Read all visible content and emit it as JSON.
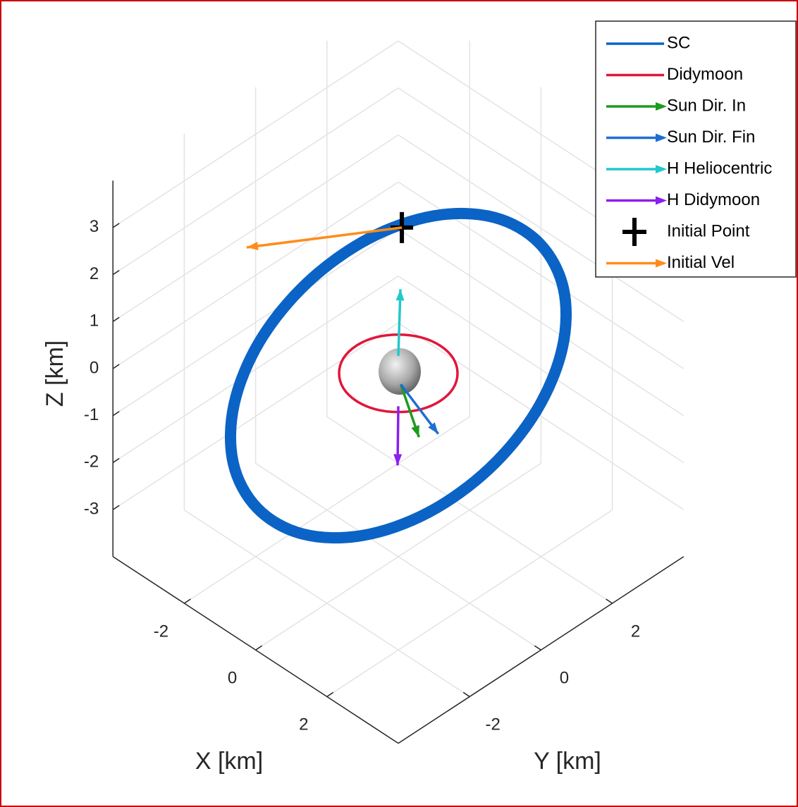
{
  "chart_data": {
    "type": "line3d",
    "xlabel": "X [km]",
    "ylabel": "Y [km]",
    "zlabel": "Z [km]",
    "xlim": [
      -4,
      4
    ],
    "ylim": [
      -4,
      4
    ],
    "zlim": [
      -4,
      4
    ],
    "xticks": [
      -2,
      0,
      2
    ],
    "yticks": [
      -2,
      0,
      2
    ],
    "zticks": [
      -3,
      -2,
      -1,
      0,
      1,
      2,
      3
    ],
    "grid": true,
    "legend": "upper right",
    "series": [
      {
        "name": "SC",
        "color": "#0b63c5",
        "kind": "line",
        "x": [
          1.7,
          1.76,
          1.55,
          1.11,
          0.5,
          -0.19,
          -0.85,
          -1.38,
          -1.7,
          -1.76,
          -1.55,
          -1.11,
          -0.5,
          0.19,
          0.85,
          1.38
        ],
        "y": [
          2.9,
          2.87,
          2.4,
          1.57,
          0.5,
          -0.65,
          -1.7,
          -2.49,
          -2.9,
          -2.87,
          -2.4,
          -1.57,
          -0.5,
          0.65,
          1.7,
          2.49
        ],
        "z": [
          -0.15,
          1.15,
          2.25,
          2.99,
          3.25,
          2.99,
          2.25,
          1.15,
          -0.15,
          -1.45,
          -2.55,
          -3.29,
          -3.55,
          -3.29,
          -2.55,
          -1.45
        ]
      },
      {
        "name": "Didymoon",
        "color": "#e0173b",
        "kind": "line",
        "x": [
          1.18,
          1.09,
          0.83,
          0.45,
          0,
          -0.45,
          -0.83,
          -1.09,
          -1.18,
          -1.09,
          -0.83,
          -0.45,
          0,
          0.45,
          0.83,
          1.09
        ],
        "y": [
          0,
          0.45,
          0.83,
          1.09,
          1.18,
          1.09,
          0.83,
          0.45,
          0,
          -0.45,
          -0.83,
          -1.09,
          -1.18,
          -1.09,
          -0.83,
          -0.45
        ],
        "z": [
          -0.1,
          -0.1,
          -0.1,
          -0.1,
          -0.1,
          -0.1,
          -0.1,
          -0.1,
          -0.1,
          -0.1,
          -0.1,
          -0.1,
          -0.1,
          -0.1,
          -0.1,
          -0.1
        ]
      },
      {
        "name": "Sun Dir. In",
        "color": "#1f9a1f",
        "kind": "quiver",
        "x": [
          0.07
        ],
        "y": [
          0
        ],
        "z": [
          -0.3
        ],
        "u": [
          0.48
        ],
        "v": [
          0.03
        ],
        "w": [
          -0.9
        ]
      },
      {
        "name": "Sun Dir. Fin",
        "color": "#1f6fd0",
        "kind": "quiver",
        "x": [
          0.07
        ],
        "y": [
          0
        ],
        "z": [
          -0.3
        ],
        "u": [
          0.78
        ],
        "v": [
          0.27
        ],
        "w": [
          -0.8
        ]
      },
      {
        "name": "H Heliocentric",
        "color": "#22c8cc",
        "kind": "quiver",
        "x": [
          0
        ],
        "y": [
          0
        ],
        "z": [
          0.27
        ],
        "u": [
          0.03
        ],
        "v": [
          0.03
        ],
        "w": [
          1.42
        ]
      },
      {
        "name": "H Didymoon",
        "color": "#8a1ff0",
        "kind": "quiver",
        "x": [
          0
        ],
        "y": [
          0
        ],
        "z": [
          -0.8
        ],
        "u": [
          0
        ],
        "v": [
          -0.02
        ],
        "w": [
          -1.25
        ]
      },
      {
        "name": "Initial Point",
        "color": "#000000",
        "kind": "marker",
        "x": [
          0.05
        ],
        "y": [
          0.05
        ],
        "z": [
          3.0
        ]
      },
      {
        "name": "Initial Vel",
        "color": "#ff8c1a",
        "kind": "quiver",
        "x": [
          0.05
        ],
        "y": [
          0.05
        ],
        "z": [
          3.0
        ],
        "u": [
          -1.75
        ],
        "v": [
          -2.6
        ],
        "w": [
          0
        ]
      }
    ]
  }
}
